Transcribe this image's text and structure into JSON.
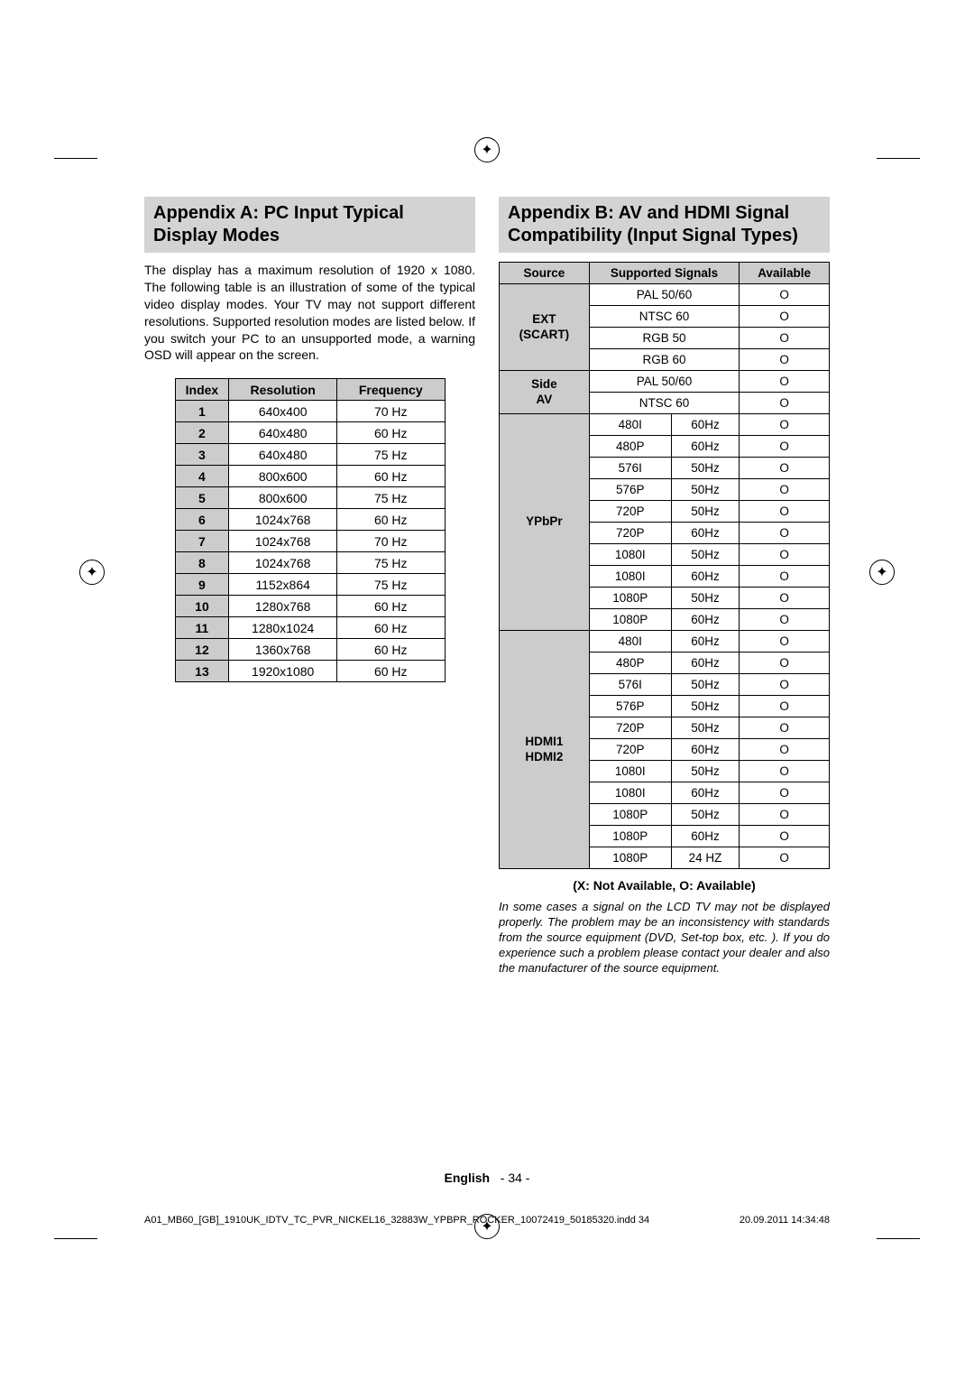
{
  "appendixA": {
    "title": "Appendix A: PC Input Typical Display Modes",
    "intro": "The display has a maximum resolution of 1920 x 1080. The following table is an illustration of some of the typical video display modes. Your TV may not support different resolutions. Supported resolution modes are listed below. If you switch your PC to an unsupported mode, a warning OSD will appear on the screen.",
    "headers": {
      "index": "Index",
      "resolution": "Resolution",
      "frequency": "Frequency"
    },
    "rows": [
      {
        "i": "1",
        "r": "640x400",
        "f": "70 Hz"
      },
      {
        "i": "2",
        "r": "640x480",
        "f": "60 Hz"
      },
      {
        "i": "3",
        "r": "640x480",
        "f": "75 Hz"
      },
      {
        "i": "4",
        "r": "800x600",
        "f": "60 Hz"
      },
      {
        "i": "5",
        "r": "800x600",
        "f": "75 Hz"
      },
      {
        "i": "6",
        "r": "1024x768",
        "f": "60 Hz"
      },
      {
        "i": "7",
        "r": "1024x768",
        "f": "70 Hz"
      },
      {
        "i": "8",
        "r": "1024x768",
        "f": "75 Hz"
      },
      {
        "i": "9",
        "r": "1152x864",
        "f": "75 Hz"
      },
      {
        "i": "10",
        "r": "1280x768",
        "f": "60 Hz"
      },
      {
        "i": "11",
        "r": "1280x1024",
        "f": "60 Hz"
      },
      {
        "i": "12",
        "r": "1360x768",
        "f": "60 Hz"
      },
      {
        "i": "13",
        "r": "1920x1080",
        "f": "60 Hz"
      }
    ]
  },
  "appendixB": {
    "title": "Appendix B: AV and HDMI Signal Compatibility (Input Signal Types)",
    "headers": {
      "source": "Source",
      "signals": "Supported Signals",
      "available": "Available"
    },
    "groups": [
      {
        "src": "EXT (SCART)",
        "type": "single",
        "rows": [
          {
            "s": "PAL 50/60",
            "a": "O"
          },
          {
            "s": "NTSC 60",
            "a": "O"
          },
          {
            "s": "RGB 50",
            "a": "O"
          },
          {
            "s": "RGB 60",
            "a": "O"
          }
        ]
      },
      {
        "src": "Side AV",
        "type": "single",
        "rows": [
          {
            "s": "PAL 50/60",
            "a": "O"
          },
          {
            "s": "NTSC 60",
            "a": "O"
          }
        ]
      },
      {
        "src": "YPbPr",
        "type": "double",
        "rows": [
          {
            "s1": "480I",
            "s2": "60Hz",
            "a": "O"
          },
          {
            "s1": "480P",
            "s2": "60Hz",
            "a": "O"
          },
          {
            "s1": "576I",
            "s2": "50Hz",
            "a": "O"
          },
          {
            "s1": "576P",
            "s2": "50Hz",
            "a": "O"
          },
          {
            "s1": "720P",
            "s2": "50Hz",
            "a": "O"
          },
          {
            "s1": "720P",
            "s2": "60Hz",
            "a": "O"
          },
          {
            "s1": "1080I",
            "s2": "50Hz",
            "a": "O"
          },
          {
            "s1": "1080I",
            "s2": "60Hz",
            "a": "O"
          },
          {
            "s1": "1080P",
            "s2": "50Hz",
            "a": "O"
          },
          {
            "s1": "1080P",
            "s2": "60Hz",
            "a": "O"
          }
        ]
      },
      {
        "src": "HDMI1 HDMI2",
        "type": "double",
        "rows": [
          {
            "s1": "480I",
            "s2": "60Hz",
            "a": "O"
          },
          {
            "s1": "480P",
            "s2": "60Hz",
            "a": "O"
          },
          {
            "s1": "576I",
            "s2": "50Hz",
            "a": "O"
          },
          {
            "s1": "576P",
            "s2": "50Hz",
            "a": "O"
          },
          {
            "s1": "720P",
            "s2": "50Hz",
            "a": "O"
          },
          {
            "s1": "720P",
            "s2": "60Hz",
            "a": "O"
          },
          {
            "s1": "1080I",
            "s2": "50Hz",
            "a": "O"
          },
          {
            "s1": "1080I",
            "s2": "60Hz",
            "a": "O"
          },
          {
            "s1": "1080P",
            "s2": "50Hz",
            "a": "O"
          },
          {
            "s1": "1080P",
            "s2": "60Hz",
            "a": "O"
          },
          {
            "s1": "1080P",
            "s2": "24 HZ",
            "a": "O"
          }
        ]
      }
    ],
    "legend": "(X: Not Available, O: Available)",
    "note": "In some cases a signal on the LCD TV may not be displayed properly. The problem may be an inconsistency with standards from the source equipment (DVD, Set-top box, etc. ). If you do experience such a problem please contact your dealer and also the manufacturer of the source equipment."
  },
  "footer": {
    "language": "English",
    "page": "- 34 -",
    "file": "A01_MB60_[GB]_1910UK_IDTV_TC_PVR_NICKEL16_32883W_YPBPR_ROCKER_10072419_50185320.indd   34",
    "date": "20.09.2011   14:34:48"
  }
}
